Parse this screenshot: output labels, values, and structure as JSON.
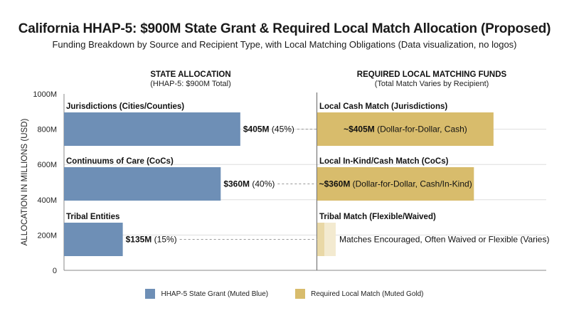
{
  "title": "California HHAP-5: $900M State Grant & Required Local Match Allocation (Proposed)",
  "subtitle": "Funding Breakdown by Source and Recipient Type, with Local Matching Obligations (Data visualization, no logos)",
  "colors": {
    "state": "#6e8fb6",
    "match": "#d8bc6c",
    "match_light": "#e9d8a6",
    "match_lighter": "#f3ead0",
    "grid": "#dedede",
    "divider": "#777777",
    "connector": "#999999"
  },
  "chart_data": {
    "type": "bar",
    "orientation": "horizontal",
    "ylabel": "ALLOCATION IN MILLIONS (USD)",
    "yticks": [
      "0",
      "200M",
      "400M",
      "600M",
      "800M",
      "1000M"
    ],
    "ylim": [
      0,
      1000
    ],
    "xlim": [
      0,
      900
    ],
    "grid": true,
    "legend_position": "bottom",
    "left_panel": {
      "title": "STATE ALLOCATION",
      "subtitle": "(HHAP-5: $900M Total)"
    },
    "right_panel": {
      "title": "REQUIRED LOCAL MATCHING FUNDS",
      "subtitle": "(Total Match Varies by Recipient)"
    },
    "series": [
      {
        "name": "HHAP-5 State Grant (Muted Blue)",
        "color": "#6e8fb6"
      },
      {
        "name": "Required Local Match (Muted Gold)",
        "color": "#d8bc6c"
      }
    ],
    "rows": [
      {
        "label": "Jurisdictions (Cities/Counties)",
        "state_value": 405,
        "state_pct": 45,
        "state_value_label": "$405M",
        "state_pct_label": "(45%)",
        "match_label": "Local Cash Match (Jurisdictions)",
        "match_value": 405,
        "match_value_label": "~$405M",
        "match_note": "(Dollar-for-Dollar, Cash)",
        "flexible": false
      },
      {
        "label": "Continuums of Care (CoCs)",
        "state_value": 360,
        "state_pct": 40,
        "state_value_label": "$360M",
        "state_pct_label": "(40%)",
        "match_label": "Local In-Kind/Cash Match (CoCs)",
        "match_value": 360,
        "match_value_label": "~$360M",
        "match_note": "(Dollar-for-Dollar, Cash/In-Kind)",
        "flexible": false
      },
      {
        "label": "Tribal Entities",
        "state_value": 135,
        "state_pct": 15,
        "state_value_label": "$135M",
        "state_pct_label": "(15%)",
        "match_label": "Tribal Match (Flexible/Waived)",
        "match_value": null,
        "match_value_label": "",
        "match_note": "Matches Encouraged, Often Waived or Flexible (Varies)",
        "flexible": true
      }
    ]
  }
}
